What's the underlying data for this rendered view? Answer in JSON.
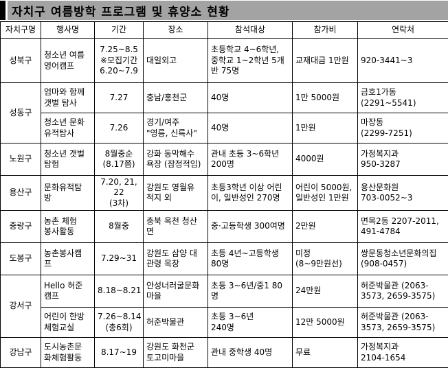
{
  "title": "자치구 여름방학 프로그램 및 휴양소 현황",
  "colors": {
    "title_bar_bg": "#a3a3a3",
    "title_marker": "#000000",
    "border": "#000000",
    "text": "#000000",
    "background": "#ffffff"
  },
  "table": {
    "headers": [
      "자치구명",
      "행사명",
      "기간",
      "장소",
      "참석대상",
      "참가비",
      "연락처"
    ],
    "districts": [
      {
        "name": "성북구",
        "rows": [
          {
            "event": "청소년 여름\n영어캠프",
            "period": "7.25~8.5\n※모집기간\n6.20~7.9",
            "place": "대일외고",
            "target": "초등학교 4~6학년,\n중학교 1~2학년 5개\n반 75명",
            "fee": "교재대금 1만원",
            "contact": "920-3441~3"
          }
        ]
      },
      {
        "name": "성동구",
        "rows": [
          {
            "event": "엄마와 함께\n갯벌 탐사",
            "period": "7.27",
            "place": "충남/홍천군",
            "target": "40명",
            "fee": "1만 5000원",
            "contact": "금호1가동\n(2291~5541)"
          },
          {
            "event": "청소년 문화\n유적탐사",
            "period": "7.26",
            "place": "경기/여주\n\"영릉, 신륵사\"",
            "target": "40명",
            "fee": "1만원",
            "contact": "마장동\n(2299-7251)"
          }
        ]
      },
      {
        "name": "노원구",
        "rows": [
          {
            "event": "청소년 갯벌\n탐험",
            "period": "8월중순\n(8.17쯤)",
            "place": "강화 동막해수\n욕장 (잠정적임)",
            "target": "관내 초등 3~6학년\n200명",
            "fee": "4000원",
            "contact": "가정복지과\n950-3287"
          }
        ]
      },
      {
        "name": "용산구",
        "rows": [
          {
            "event": "문화유적탐\n방",
            "period": "7.20, 21, 22\n(3차)",
            "place": "강원도 영월유\n적지 외",
            "target": "초등3학년 이상 어린\n이, 일반성인 270명",
            "fee": "어린이 5000원,\n일반성인 1만원",
            "contact": "용산문화원\n703-0052~3"
          }
        ]
      },
      {
        "name": "중랑구",
        "rows": [
          {
            "event": "농촌 체험\n봉사활동",
            "period": "8월중",
            "place": "충북 옥천 청산\n면",
            "target": "중·고등학생 300여명",
            "fee": "2만원",
            "contact": "면목2동 2207-2011,\n491-4784"
          }
        ]
      },
      {
        "name": "도봉구",
        "rows": [
          {
            "event": "농촌봉사캠\n프",
            "period": "7.29~31",
            "place": "강원도 삼양 대\n관령 목장",
            "target": "초등 4년~고등학생\n80명",
            "fee": "미정\n(8~9만원선)",
            "contact": "쌍문동청소년문화의집\n(908-0457)"
          }
        ]
      },
      {
        "name": "강서구",
        "rows": [
          {
            "event": "Hello 허준\n캠프",
            "period": "8.18~8.21",
            "place": "안성너러굴문화\n마을",
            "target": "초등 3~6년/중1 80\n명",
            "fee": "24만원",
            "contact": "허준박물관 (2063-\n3573, 2659-3575)"
          },
          {
            "event": "어린이 한방\n체험교실",
            "period": "7.26~8.14\n(총6회)",
            "place": "허준박물관",
            "target": "초등 3~6년\n240명",
            "fee": "12만 5000원",
            "contact": "허준박물관 (2063-\n3573, 2659-3575)"
          }
        ]
      },
      {
        "name": "강남구",
        "rows": [
          {
            "event": "도시농촌문\n화체험활동",
            "period": "8.17~19",
            "place": "강원도 화천군\n토고미마을",
            "target": "관내 중학생 40명",
            "fee": "무료",
            "contact": "가정복지과\n2104-1654"
          }
        ]
      }
    ]
  }
}
